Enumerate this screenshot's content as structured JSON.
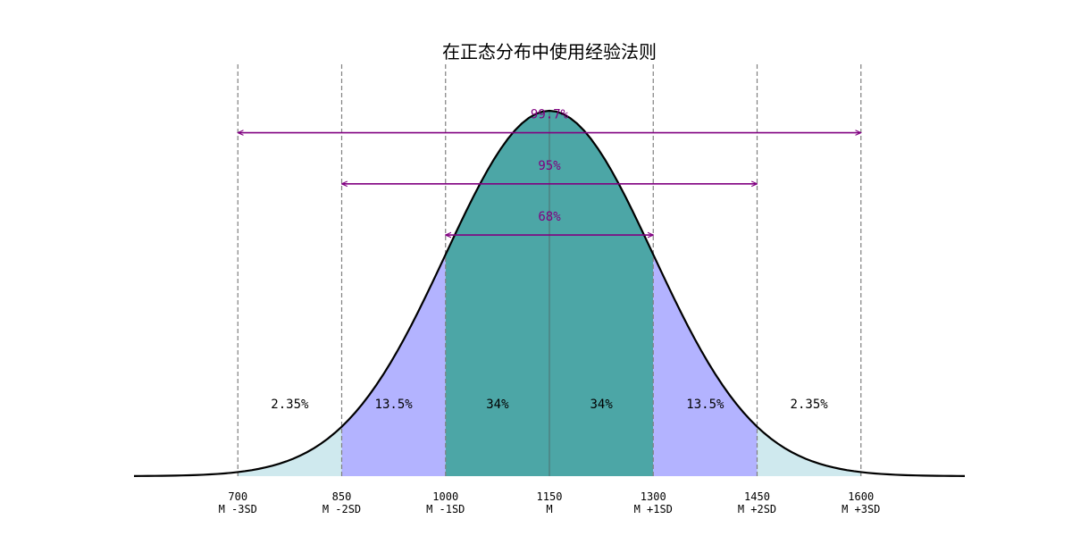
{
  "chart_data": {
    "type": "area",
    "title": "在正态分布中使用经验法则",
    "distribution": {
      "mean": 1150,
      "sd": 150
    },
    "xlim": [
      550,
      1750
    ],
    "grid": false,
    "ticks": [
      {
        "value": 700,
        "label": "M -3SD"
      },
      {
        "value": 850,
        "label": "M -2SD"
      },
      {
        "value": 1000,
        "label": "M -1SD"
      },
      {
        "value": 1150,
        "label": "M"
      },
      {
        "value": 1300,
        "label": "M +1SD"
      },
      {
        "value": 1450,
        "label": "M +2SD"
      },
      {
        "value": 1600,
        "label": "M +3SD"
      }
    ],
    "regions": [
      {
        "from": 700,
        "to": 850,
        "percent": "2.35%",
        "color": "#cfe9ee"
      },
      {
        "from": 850,
        "to": 1000,
        "percent": "13.5%",
        "color": "#b3b3ff"
      },
      {
        "from": 1000,
        "to": 1150,
        "percent": "34%",
        "color": "#4ca6a6"
      },
      {
        "from": 1150,
        "to": 1300,
        "percent": "34%",
        "color": "#4ca6a6"
      },
      {
        "from": 1300,
        "to": 1450,
        "percent": "13.5%",
        "color": "#b3b3ff"
      },
      {
        "from": 1450,
        "to": 1600,
        "percent": "2.35%",
        "color": "#cfe9ee"
      }
    ],
    "ranges": [
      {
        "from": 700,
        "to": 1600,
        "label": "99.7%",
        "level": 0.94
      },
      {
        "from": 850,
        "to": 1450,
        "label": "95%",
        "level": 0.8
      },
      {
        "from": 1000,
        "to": 1300,
        "label": "68%",
        "level": 0.66
      }
    ],
    "colors": {
      "curve": "#000000",
      "arrow": "#800080",
      "vline": "#808080",
      "mean_line": "#4d8a8a"
    }
  }
}
